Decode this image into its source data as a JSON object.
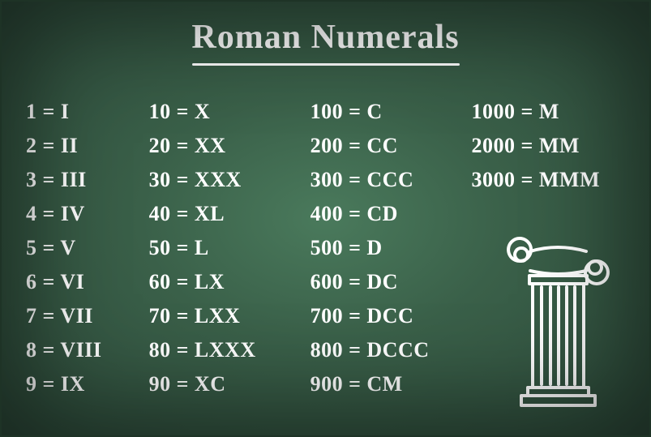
{
  "title": "Roman Numerals",
  "text_color": "#ffffff",
  "background_colors": {
    "center": "#4a7a5c",
    "mid": "#3a6049",
    "edge": "#2d4a3a"
  },
  "title_fontsize": 42,
  "cell_fontsize": 26,
  "font_family": "Comic Sans MS",
  "columns": [
    {
      "rows": [
        {
          "arabic": "1",
          "roman": "I"
        },
        {
          "arabic": "2",
          "roman": "II"
        },
        {
          "arabic": "3",
          "roman": "III"
        },
        {
          "arabic": "4",
          "roman": "IV"
        },
        {
          "arabic": "5",
          "roman": "V"
        },
        {
          "arabic": "6",
          "roman": "VI"
        },
        {
          "arabic": "7",
          "roman": "VII"
        },
        {
          "arabic": "8",
          "roman": "VIII"
        },
        {
          "arabic": "9",
          "roman": "IX"
        }
      ]
    },
    {
      "rows": [
        {
          "arabic": "10",
          "roman": "X"
        },
        {
          "arabic": "20",
          "roman": "XX"
        },
        {
          "arabic": "30",
          "roman": "XXX"
        },
        {
          "arabic": "40",
          "roman": "XL"
        },
        {
          "arabic": "50",
          "roman": "L"
        },
        {
          "arabic": "60",
          "roman": "LX"
        },
        {
          "arabic": "70",
          "roman": "LXX"
        },
        {
          "arabic": "80",
          "roman": "LXXX"
        },
        {
          "arabic": "90",
          "roman": "XC"
        }
      ]
    },
    {
      "rows": [
        {
          "arabic": "100",
          "roman": "C"
        },
        {
          "arabic": "200",
          "roman": "CC"
        },
        {
          "arabic": "300",
          "roman": "CCC"
        },
        {
          "arabic": "400",
          "roman": "CD"
        },
        {
          "arabic": "500",
          "roman": "D"
        },
        {
          "arabic": "600",
          "roman": "DC"
        },
        {
          "arabic": "700",
          "roman": "DCC"
        },
        {
          "arabic": "800",
          "roman": "DCCC"
        },
        {
          "arabic": "900",
          "roman": "CM"
        }
      ]
    },
    {
      "rows": [
        {
          "arabic": "1000",
          "roman": "M"
        },
        {
          "arabic": "2000",
          "roman": "MM"
        },
        {
          "arabic": "3000",
          "roman": "MMM"
        }
      ]
    }
  ],
  "decoration": {
    "name": "ionic-pillar",
    "stroke": "#ffffff",
    "stroke_width": 4
  }
}
